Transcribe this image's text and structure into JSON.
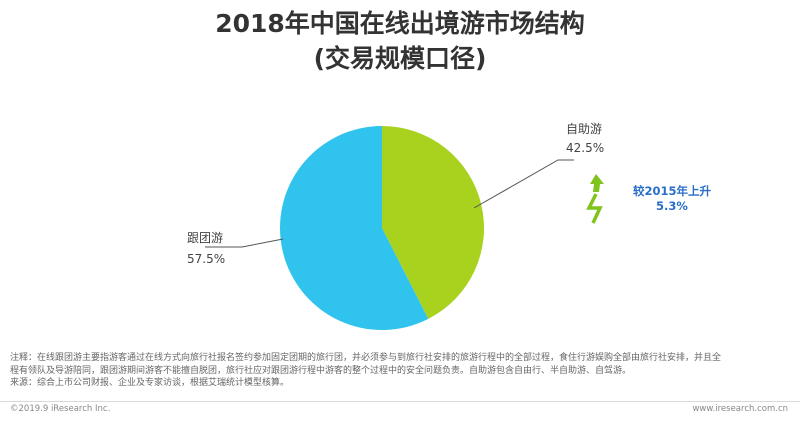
{
  "title_line1": "2018年中国在线出境游市场结构",
  "title_line2": "(交易规模口径)",
  "chart_data": {
    "type": "pie",
    "title": "2018年中国在线出境游市场结构",
    "subtitle": "(交易规模口径)",
    "slices": [
      {
        "name": "自助游",
        "value": 42.5,
        "label": "42.5%",
        "color": "#a8d21e"
      },
      {
        "name": "跟团游",
        "value": 57.5,
        "label": "57.5%",
        "color": "#30c3ed"
      }
    ],
    "annotation": {
      "line1": "较2015年上升",
      "line2": "5.3%"
    }
  },
  "notes": {
    "line1": "注释：在线跟团游主要指游客通过在线方式向旅行社报名签约参加固定团期的旅行团，并必须参与到旅行社安排的旅游行程中的全部过程，食住行游娱购全部由旅行社安排，并且全",
    "line2": "程有领队及导游陪同，跟团游期间游客不能擅自脱团，旅行社应对跟团游行程中游客的整个过程中的安全问题负责。自助游包含自由行、半自助游、自驾游。",
    "line3": "来源：综合上市公司财报、企业及专家访谈，根据艾瑞统计模型核算。"
  },
  "footer": {
    "left": "©2019.9 iResearch Inc.",
    "right": "www.iresearch.com.cn"
  }
}
